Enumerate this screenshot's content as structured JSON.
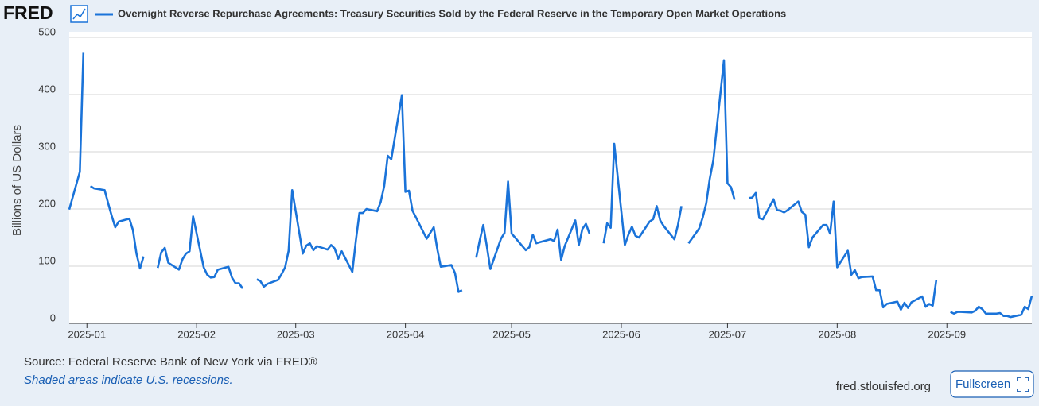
{
  "header": {
    "logo": "FRED"
  },
  "chart_data": {
    "type": "line",
    "y_label": "Billions of US Dollars",
    "x": [
      "2024-12-27",
      "2024-12-30",
      "2024-12-31",
      "2025-01-01",
      "2025-01-02",
      "2025-01-03",
      "2025-01-06",
      "2025-01-07",
      "2025-01-08",
      "2025-01-09",
      "2025-01-10",
      "2025-01-13",
      "2025-01-14",
      "2025-01-15",
      "2025-01-16",
      "2025-01-17",
      "2025-01-20",
      "2025-01-21",
      "2025-01-22",
      "2025-01-23",
      "2025-01-24",
      "2025-01-27",
      "2025-01-28",
      "2025-01-29",
      "2025-01-30",
      "2025-01-31",
      "2025-02-03",
      "2025-02-04",
      "2025-02-05",
      "2025-02-06",
      "2025-02-07",
      "2025-02-10",
      "2025-02-11",
      "2025-02-12",
      "2025-02-13",
      "2025-02-14",
      "2025-02-17",
      "2025-02-18",
      "2025-02-19",
      "2025-02-20",
      "2025-02-21",
      "2025-02-24",
      "2025-02-25",
      "2025-02-26",
      "2025-02-27",
      "2025-02-28",
      "2025-03-03",
      "2025-03-04",
      "2025-03-05",
      "2025-03-06",
      "2025-03-07",
      "2025-03-10",
      "2025-03-11",
      "2025-03-12",
      "2025-03-13",
      "2025-03-14",
      "2025-03-17",
      "2025-03-18",
      "2025-03-19",
      "2025-03-20",
      "2025-03-21",
      "2025-03-24",
      "2025-03-25",
      "2025-03-26",
      "2025-03-27",
      "2025-03-28",
      "2025-03-31",
      "2025-04-01",
      "2025-04-02",
      "2025-04-03",
      "2025-04-04",
      "2025-04-07",
      "2025-04-08",
      "2025-04-09",
      "2025-04-10",
      "2025-04-11",
      "2025-04-14",
      "2025-04-15",
      "2025-04-16",
      "2025-04-17",
      "2025-04-18",
      "2025-04-21",
      "2025-04-22",
      "2025-04-23",
      "2025-04-24",
      "2025-04-25",
      "2025-04-28",
      "2025-04-29",
      "2025-04-30",
      "2025-05-01",
      "2025-05-02",
      "2025-05-05",
      "2025-05-06",
      "2025-05-07",
      "2025-05-08",
      "2025-05-09",
      "2025-05-12",
      "2025-05-13",
      "2025-05-14",
      "2025-05-15",
      "2025-05-16",
      "2025-05-19",
      "2025-05-20",
      "2025-05-21",
      "2025-05-22",
      "2025-05-23",
      "2025-05-26",
      "2025-05-27",
      "2025-05-28",
      "2025-05-29",
      "2025-05-30",
      "2025-06-02",
      "2025-06-03",
      "2025-06-04",
      "2025-06-05",
      "2025-06-06",
      "2025-06-09",
      "2025-06-10",
      "2025-06-11",
      "2025-06-12",
      "2025-06-13",
      "2025-06-16",
      "2025-06-17",
      "2025-06-18",
      "2025-06-19",
      "2025-06-20",
      "2025-06-23",
      "2025-06-24",
      "2025-06-25",
      "2025-06-26",
      "2025-06-27",
      "2025-06-30",
      "2025-07-01",
      "2025-07-02",
      "2025-07-03",
      "2025-07-04",
      "2025-07-07",
      "2025-07-08",
      "2025-07-09",
      "2025-07-10",
      "2025-07-11",
      "2025-07-14",
      "2025-07-15",
      "2025-07-16",
      "2025-07-17",
      "2025-07-18",
      "2025-07-21",
      "2025-07-22",
      "2025-07-23",
      "2025-07-24",
      "2025-07-25",
      "2025-07-28",
      "2025-07-29",
      "2025-07-30",
      "2025-07-31",
      "2025-08-01",
      "2025-08-04",
      "2025-08-05",
      "2025-08-06",
      "2025-08-07",
      "2025-08-08",
      "2025-08-11",
      "2025-08-12",
      "2025-08-13",
      "2025-08-14",
      "2025-08-15",
      "2025-08-18",
      "2025-08-19",
      "2025-08-20",
      "2025-08-21",
      "2025-08-22",
      "2025-08-25",
      "2025-08-26",
      "2025-08-27",
      "2025-08-28",
      "2025-08-29",
      "2025-09-01",
      "2025-09-02",
      "2025-09-03",
      "2025-09-04",
      "2025-09-05",
      "2025-09-08",
      "2025-09-09",
      "2025-09-10",
      "2025-09-11",
      "2025-09-12",
      "2025-09-15",
      "2025-09-16",
      "2025-09-17",
      "2025-09-18",
      "2025-09-19",
      "2025-09-22",
      "2025-09-23",
      "2025-09-24",
      "2025-09-25"
    ],
    "series": [
      {
        "name": "Overnight Reverse Repurchase Agreements: Treasury Securities Sold by the Federal Reserve in the Temporary Open Market Operations",
        "color": "#1a73d9",
        "values": [
          199,
          265,
          473,
          null,
          240,
          236,
          233,
          210,
          188,
          168,
          178,
          183,
          163,
          122,
          96,
          117,
          null,
          97,
          124,
          132,
          106,
          94,
          112,
          122,
          126,
          187,
          98,
          85,
          80,
          81,
          94,
          99,
          80,
          70,
          70,
          61,
          null,
          77,
          74,
          64,
          69,
          76,
          86,
          98,
          127,
          233,
          122,
          136,
          140,
          128,
          135,
          129,
          137,
          131,
          113,
          126,
          90,
          145,
          193,
          193,
          200,
          196,
          212,
          240,
          293,
          287,
          399,
          230,
          232,
          197,
          185,
          148,
          158,
          168,
          130,
          99,
          102,
          88,
          55,
          58,
          null,
          115,
          145,
          172,
          135,
          95,
          148,
          158,
          248,
          157,
          150,
          128,
          133,
          155,
          140,
          142,
          147,
          144,
          164,
          111,
          135,
          180,
          137,
          165,
          174,
          157,
          null,
          140,
          175,
          167,
          314,
          137,
          155,
          169,
          153,
          150,
          178,
          182,
          205,
          180,
          170,
          147,
          172,
          205,
          null,
          140,
          166,
          185,
          210,
          253,
          285,
          460,
          245,
          238,
          216,
          null,
          219,
          220,
          228,
          184,
          182,
          217,
          198,
          197,
          194,
          198,
          213,
          195,
          190,
          133,
          150,
          172,
          172,
          157,
          213,
          98,
          127,
          85,
          93,
          79,
          81,
          82,
          58,
          58,
          28,
          34,
          38,
          24,
          36,
          27,
          37,
          47,
          29,
          34,
          31,
          76,
          null,
          20,
          17,
          20,
          20,
          19,
          22,
          29,
          25,
          17,
          17,
          18,
          13,
          13,
          11,
          15,
          29,
          25,
          48
        ]
      }
    ],
    "xlim": [
      "2024-12-27",
      "2025-09-25"
    ],
    "xticks": [
      {
        "value": "2025-01-01",
        "label": "2025-01"
      },
      {
        "value": "2025-02-01",
        "label": "2025-02"
      },
      {
        "value": "2025-03-01",
        "label": "2025-03"
      },
      {
        "value": "2025-04-01",
        "label": "2025-04"
      },
      {
        "value": "2025-05-01",
        "label": "2025-05"
      },
      {
        "value": "2025-06-01",
        "label": "2025-06"
      },
      {
        "value": "2025-07-01",
        "label": "2025-07"
      },
      {
        "value": "2025-08-01",
        "label": "2025-08"
      },
      {
        "value": "2025-09-01",
        "label": "2025-09"
      }
    ],
    "ylim": [
      0,
      500
    ],
    "yticks": [
      0,
      100,
      200,
      300,
      400,
      500
    ],
    "grid": true
  },
  "footer": {
    "source": "Source: Federal Reserve Bank of New York via FRED®",
    "note": "Shaded areas indicate U.S. recessions.",
    "site": "fred.stlouisfed.org",
    "button": "Fullscreen"
  }
}
